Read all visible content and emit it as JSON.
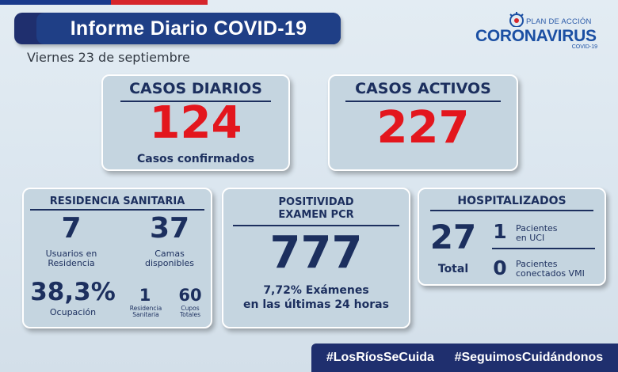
{
  "header": {
    "title": "Informe Diario COVID-19",
    "date": "Viernes 23 de septiembre"
  },
  "logo": {
    "line1": "PLAN DE ACCIÓN",
    "line2": "CORONAVIRUS",
    "line3": "COVID-19"
  },
  "casos_diarios": {
    "title": "CASOS DIARIOS",
    "value": "124",
    "caption": "Casos confirmados"
  },
  "casos_activos": {
    "title": "CASOS ACTIVOS",
    "value": "227"
  },
  "residencia": {
    "title": "RESIDENCIA SANITARIA",
    "usuarios_value": "7",
    "usuarios_label_1": "Usuarios en",
    "usuarios_label_2": "Residencia",
    "camas_value": "37",
    "camas_label_1": "Camas",
    "camas_label_2": "disponibles",
    "ocupacion_value": "38,3%",
    "ocupacion_label": "Ocupación",
    "res_value": "1",
    "res_label_1": "Residencia",
    "res_label_2": "Sanitaria",
    "cupos_value": "60",
    "cupos_label_1": "Cupos",
    "cupos_label_2": "Totales"
  },
  "positividad": {
    "title_1": "POSITIVIDAD",
    "title_2": "EXAMEN PCR",
    "value": "777",
    "caption_1": "7,72% Exámenes",
    "caption_2": "en las últimas 24 horas"
  },
  "hospitalizados": {
    "title": "HOSPITALIZADOS",
    "total_value": "27",
    "total_label": "Total",
    "uci_value": "1",
    "uci_label_1": "Pacientes",
    "uci_label_2": "en UCI",
    "vmi_value": "0",
    "vmi_label_1": "Pacientes",
    "vmi_label_2": "conectados VMI"
  },
  "footer": {
    "tag1": "#LosRíosSeCuida",
    "tag2": "#SeguimosCuidándonos"
  },
  "colors": {
    "navy": "#1f2f6e",
    "red": "#e3161d",
    "card": "#c5d5e0"
  }
}
